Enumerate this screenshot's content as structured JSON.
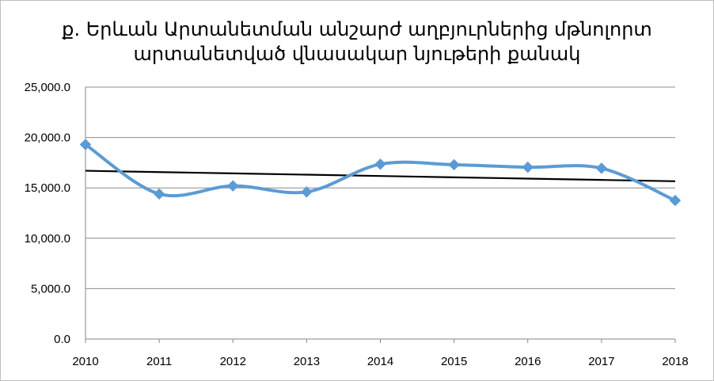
{
  "chart_data": {
    "type": "line",
    "title_lines": [
      "ք. Երևան  Արտանետման անշարժ աղբյուրներից մթնոլորտ",
      "արտանետված վնասակար նյութերի քանակ"
    ],
    "xlabel": "",
    "ylabel": "",
    "categories": [
      "2010",
      "2011",
      "2012",
      "2013",
      "2014",
      "2015",
      "2016",
      "2017",
      "2018"
    ],
    "y_tick_labels": [
      "0.0",
      "5,000.0",
      "10,000.0",
      "15,000.0",
      "20,000.0",
      "25,000.0"
    ],
    "ylim": [
      0,
      25000
    ],
    "grid": true,
    "legend": "none",
    "series": [
      {
        "values": [
          19300,
          14400,
          15200,
          14600,
          17350,
          17300,
          17050,
          16950,
          13750
        ],
        "color": "#5b9bd5",
        "marker": "diamond",
        "smooth": true
      },
      {
        "values": [
          16700,
          16570,
          16440,
          16310,
          16180,
          16050,
          15920,
          15790,
          15660
        ],
        "color": "#000000",
        "marker": "none",
        "trendline": true
      }
    ]
  }
}
